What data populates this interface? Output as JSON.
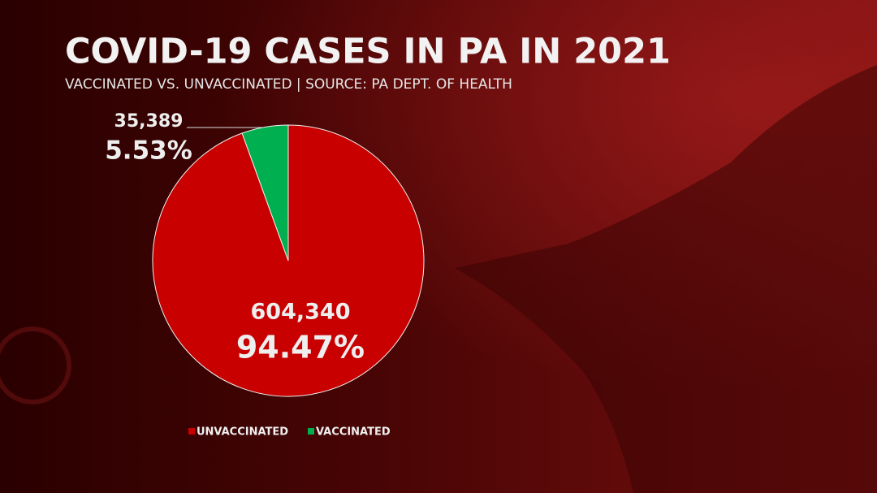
{
  "chart_data": {
    "type": "pie",
    "title": "COVID-19 CASES IN PA IN 2021",
    "subtitle": "VACCINATED VS. UNVACCINATED | SOURCE: PA DEPT. OF HEALTH",
    "categories": [
      "UNVACCINATED",
      "VACCINATED"
    ],
    "values": [
      604340,
      35389
    ],
    "value_labels": [
      "604,340",
      "35,389"
    ],
    "percent_values": [
      94.47,
      5.53
    ],
    "percent_labels": [
      "94.47%",
      "5.53%"
    ],
    "colors": [
      "#c80000",
      "#00b050"
    ]
  }
}
